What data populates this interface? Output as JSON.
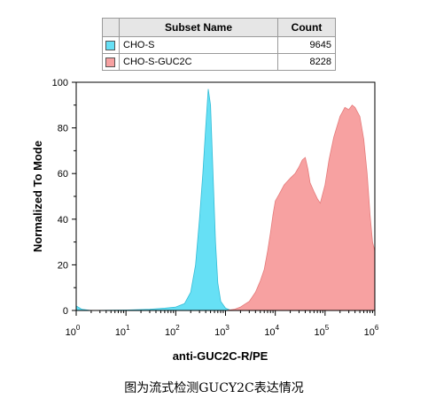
{
  "legend": {
    "header_name": "Subset Name",
    "header_count": "Count",
    "rows": [
      {
        "name": "CHO-S",
        "count": "9645",
        "color": "#66e0f5"
      },
      {
        "name": "CHO-S-GUC2C",
        "count": "8228",
        "color": "#f7a1a1"
      }
    ]
  },
  "caption": "图为流式检测GUCY2C表达情况",
  "chart_data": {
    "type": "area",
    "xlabel": "anti-GUC2C-R/PE",
    "ylabel": "Normalized To Mode",
    "x_scale": "log",
    "xlim": [
      1,
      1000000
    ],
    "ylim": [
      0,
      100
    ],
    "x_ticks": [
      {
        "base": "10",
        "exp": "0",
        "value": 1
      },
      {
        "base": "10",
        "exp": "1",
        "value": 10
      },
      {
        "base": "10",
        "exp": "2",
        "value": 100
      },
      {
        "base": "10",
        "exp": "3",
        "value": 1000
      },
      {
        "base": "10",
        "exp": "4",
        "value": 10000
      },
      {
        "base": "10",
        "exp": "5",
        "value": 100000
      },
      {
        "base": "10",
        "exp": "6",
        "value": 1000000
      }
    ],
    "y_ticks": [
      "0",
      "20",
      "40",
      "60",
      "80",
      "100"
    ],
    "series": [
      {
        "name": "CHO-S",
        "color": "#66e0f5",
        "edge": "#33bcd6",
        "points": [
          [
            1,
            2
          ],
          [
            1.3,
            0.5
          ],
          [
            2,
            0
          ],
          [
            10,
            0.2
          ],
          [
            30,
            0.5
          ],
          [
            60,
            1
          ],
          [
            100,
            1.5
          ],
          [
            150,
            3
          ],
          [
            200,
            8
          ],
          [
            250,
            20
          ],
          [
            300,
            40
          ],
          [
            350,
            60
          ],
          [
            400,
            80
          ],
          [
            450,
            97
          ],
          [
            500,
            90
          ],
          [
            560,
            60
          ],
          [
            630,
            30
          ],
          [
            700,
            12
          ],
          [
            800,
            4
          ],
          [
            1000,
            1
          ],
          [
            1300,
            0
          ]
        ]
      },
      {
        "name": "CHO-S-GUC2C",
        "color": "#f7a1a1",
        "edge": "#e57b7b",
        "points": [
          [
            1000,
            0
          ],
          [
            1500,
            0.5
          ],
          [
            2000,
            1.5
          ],
          [
            3000,
            4
          ],
          [
            4000,
            8
          ],
          [
            5000,
            13
          ],
          [
            6000,
            18
          ],
          [
            7000,
            26
          ],
          [
            8000,
            34
          ],
          [
            9000,
            42
          ],
          [
            10000,
            48
          ],
          [
            12000,
            51
          ],
          [
            15000,
            55
          ],
          [
            20000,
            58
          ],
          [
            25000,
            60
          ],
          [
            30000,
            63
          ],
          [
            35000,
            66
          ],
          [
            40000,
            67
          ],
          [
            45000,
            62
          ],
          [
            50000,
            56
          ],
          [
            60000,
            52
          ],
          [
            70000,
            49
          ],
          [
            80000,
            47
          ],
          [
            100000,
            55
          ],
          [
            120000,
            66
          ],
          [
            150000,
            76
          ],
          [
            200000,
            85
          ],
          [
            250000,
            89
          ],
          [
            300000,
            88
          ],
          [
            350000,
            90
          ],
          [
            400000,
            89
          ],
          [
            500000,
            85
          ],
          [
            600000,
            75
          ],
          [
            700000,
            60
          ],
          [
            800000,
            42
          ],
          [
            900000,
            30
          ],
          [
            1000000,
            26
          ]
        ]
      }
    ]
  }
}
